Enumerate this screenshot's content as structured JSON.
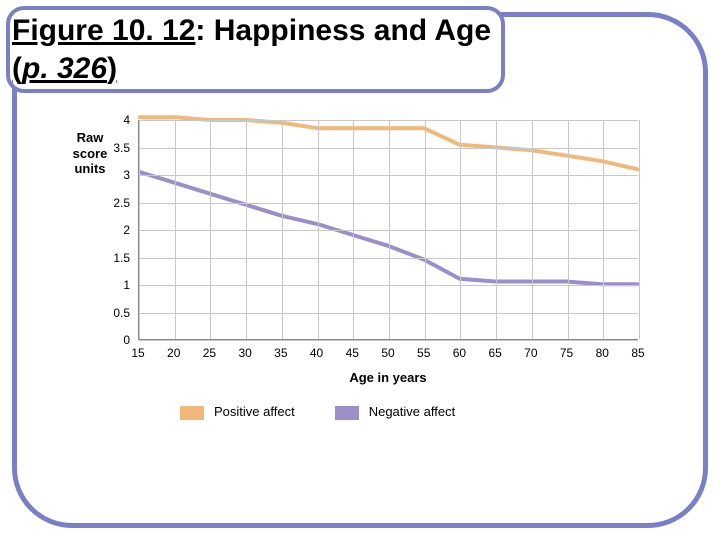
{
  "title": {
    "prefix": "Figure 10. 12",
    "rest": ": Happiness and Age",
    "line2_open": "(",
    "line2_em": "p. 326",
    "line2_close": ")"
  },
  "chart": {
    "type": "line",
    "ylabel_l1": "Raw",
    "ylabel_l2": "score",
    "ylabel_l3": "units",
    "xlabel": "Age in years",
    "background_color": "#ffffff",
    "grid_color": "#c8c8c8",
    "axis_color": "#888888",
    "tick_fontsize": 12,
    "label_fontsize": 13,
    "title_fontsize": 30,
    "xlim": [
      15,
      85
    ],
    "ylim": [
      0,
      4
    ],
    "xticks": [
      15,
      20,
      25,
      30,
      35,
      40,
      45,
      50,
      55,
      60,
      65,
      70,
      75,
      80,
      85
    ],
    "yticks": [
      0,
      0.5,
      1,
      1.5,
      2,
      2.5,
      3,
      3.5,
      4
    ],
    "line_width": 4,
    "series": [
      {
        "name": "Positive affect",
        "color": "#f2b87a",
        "x": [
          15,
          20,
          25,
          30,
          35,
          40,
          45,
          50,
          55,
          60,
          65,
          70,
          75,
          80,
          85
        ],
        "y": [
          4.05,
          4.05,
          4.0,
          4.0,
          3.95,
          3.85,
          3.85,
          3.85,
          3.85,
          3.55,
          3.5,
          3.45,
          3.35,
          3.25,
          3.1
        ]
      },
      {
        "name": "Negative affect",
        "color": "#9a8fc9",
        "x": [
          15,
          20,
          25,
          30,
          35,
          40,
          45,
          50,
          55,
          60,
          65,
          70,
          75,
          80,
          85
        ],
        "y": [
          3.05,
          2.85,
          2.65,
          2.45,
          2.25,
          2.1,
          1.9,
          1.7,
          1.45,
          1.1,
          1.05,
          1.05,
          1.05,
          1.0,
          1.0
        ]
      }
    ],
    "legend_items": [
      {
        "label": "Positive affect",
        "color": "#f2b87a"
      },
      {
        "label": "Negative affect",
        "color": "#9a8fc9"
      }
    ]
  },
  "frame_border_color": "#7a80c7"
}
